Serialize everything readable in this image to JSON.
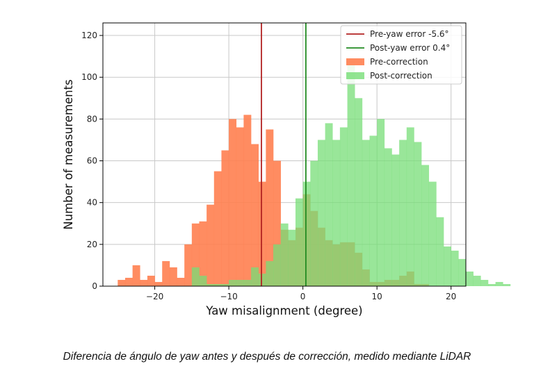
{
  "chart_data": {
    "type": "bar",
    "xlabel": "Yaw misalignment (degree)",
    "ylabel": "Number of measurements",
    "xlim": [
      -27,
      22
    ],
    "ylim": [
      0,
      126
    ],
    "xticks": [
      -20,
      -10,
      0,
      10,
      20
    ],
    "yticks": [
      0,
      20,
      40,
      60,
      80,
      100,
      120
    ],
    "xtick_labels": [
      "−20",
      "−10",
      "0",
      "10",
      "20"
    ],
    "ytick_labels": [
      "0",
      "20",
      "40",
      "60",
      "80",
      "100",
      "120"
    ],
    "grid": true,
    "legend_position": "top-right",
    "bin_width": 1,
    "series": [
      {
        "name": "Pre-correction",
        "color": "#ff7f50",
        "bin_start": -25,
        "counts": [
          3,
          4,
          10,
          3,
          5,
          2,
          12,
          9,
          4,
          20,
          30,
          31,
          39,
          55,
          65,
          80,
          76,
          82,
          68,
          50,
          75,
          60,
          27,
          22,
          28,
          44,
          36,
          28,
          22,
          20,
          21,
          21,
          16,
          8,
          2,
          2,
          3,
          3,
          5,
          7,
          1,
          1,
          0
        ],
        "edge_values": []
      },
      {
        "name": "Post-correction",
        "color": "#77dd77",
        "bin_start": -20,
        "counts": [
          0,
          0,
          0,
          0,
          0,
          9,
          5,
          1,
          1,
          1,
          3,
          3,
          3,
          9,
          6,
          12,
          20,
          30,
          27,
          42,
          50,
          60,
          70,
          78,
          70,
          76,
          108,
          90,
          70,
          72,
          80,
          66,
          63,
          70,
          76,
          69,
          58,
          50,
          33,
          19,
          17,
          13,
          7,
          5,
          3,
          1,
          2,
          1,
          0
        ],
        "edge_values": []
      }
    ],
    "vlines": [
      {
        "name": "Pre-yaw error -5.6°",
        "x": -5.6,
        "color": "#b22222"
      },
      {
        "name": "Post-yaw error 0.4°",
        "x": 0.4,
        "color": "#228b22"
      }
    ]
  },
  "caption": "Diferencia de ángulo de yaw antes y después de corrección, medido mediante LiDAR"
}
